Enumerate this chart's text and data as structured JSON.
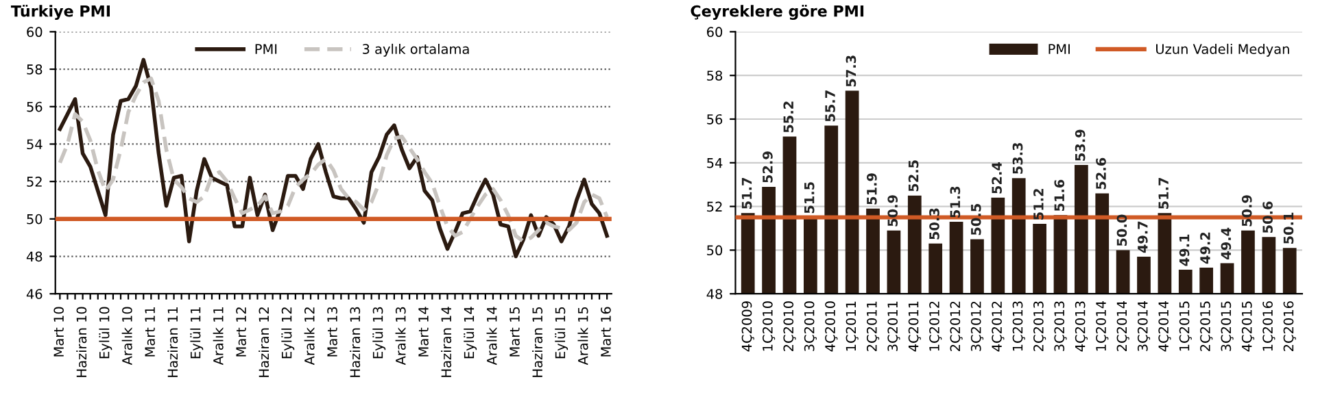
{
  "chart_data": [
    {
      "type": "line",
      "title": "Türkiye PMI",
      "categories": [
        "Mart 10",
        null,
        null,
        "Haziran 10",
        null,
        null,
        "Eylül 10",
        null,
        null,
        "Aralık 10",
        null,
        null,
        "Mart 11",
        null,
        null,
        "Haziran 11",
        null,
        null,
        "Eylül 11",
        null,
        null,
        "Aralık 11",
        null,
        null,
        "Mart 12",
        null,
        null,
        "Haziran 12",
        null,
        null,
        "Eylül 12",
        null,
        null,
        "Aralık 12",
        null,
        null,
        "Mart 13",
        null,
        null,
        "Haziran 13",
        null,
        null,
        "Eylül 13",
        null,
        null,
        "Aralık 13",
        null,
        null,
        "Mart 14",
        null,
        null,
        "Haziran 14",
        null,
        null,
        "Eylül 14",
        null,
        null,
        "Aralık 14",
        null,
        null,
        "Mart 15",
        null,
        null,
        "Haziran 15",
        null,
        null,
        "Eylül 15",
        null,
        null,
        "Aralık 15",
        null,
        null,
        "Mart 16"
      ],
      "series": [
        {
          "name": "PMI",
          "color": "#2b1a10",
          "line_style": "solid",
          "values": [
            54.8,
            55.6,
            56.4,
            53.5,
            52.8,
            51.5,
            50.2,
            54.5,
            56.3,
            56.4,
            57.1,
            58.5,
            57.0,
            53.5,
            50.7,
            52.2,
            52.3,
            48.8,
            51.5,
            53.2,
            52.2,
            52.0,
            51.8,
            49.6,
            49.6,
            52.2,
            50.2,
            51.3,
            49.4,
            50.5,
            52.3,
            52.3,
            51.6,
            53.2,
            54.0,
            52.5,
            51.2,
            51.1,
            51.1,
            50.5,
            49.8,
            52.5,
            53.3,
            54.5,
            55.0,
            53.7,
            52.7,
            53.3,
            51.5,
            51.0,
            49.5,
            48.4,
            49.3,
            50.3,
            50.4,
            51.3,
            52.1,
            51.3,
            49.7,
            49.6,
            48.0,
            48.9,
            50.2,
            49.1,
            50.1,
            49.7,
            48.8,
            49.6,
            51.0,
            52.1,
            50.8,
            50.3,
            49.1
          ]
        },
        {
          "name": "3 aylık ortalama",
          "color": "#c8c4c0",
          "line_style": "dashed",
          "values": [
            53.0,
            54.0,
            55.6,
            55.2,
            54.2,
            52.6,
            51.5,
            52.1,
            53.7,
            55.7,
            56.6,
            57.3,
            57.5,
            56.3,
            53.7,
            52.1,
            51.7,
            51.1,
            50.9,
            51.2,
            52.3,
            52.5,
            52.0,
            51.1,
            50.3,
            50.5,
            50.7,
            51.2,
            50.3,
            50.4,
            50.7,
            51.7,
            52.1,
            52.4,
            52.9,
            53.2,
            52.6,
            51.6,
            51.1,
            50.9,
            50.5,
            50.9,
            51.9,
            53.4,
            54.3,
            54.4,
            53.8,
            53.2,
            52.5,
            51.9,
            50.7,
            49.6,
            49.1,
            49.3,
            50.0,
            50.7,
            51.3,
            51.6,
            51.0,
            50.2,
            49.1,
            48.8,
            49.0,
            49.4,
            49.8,
            49.6,
            49.5,
            49.4,
            49.8,
            50.9,
            51.3,
            51.1,
            50.1
          ]
        }
      ],
      "ref_lines": [
        {
          "axis": "y",
          "value": 50,
          "color": "#d05a25"
        }
      ],
      "ylim": [
        46,
        60
      ],
      "yticks": [
        46,
        48,
        50,
        52,
        54,
        56,
        58,
        60
      ],
      "grid": "y",
      "legend": "top"
    },
    {
      "type": "bar",
      "title": "Çeyreklere göre PMI",
      "categories": [
        "4Ç2009",
        "1Ç2010",
        "2Ç2010",
        "3Ç2010",
        "4Ç2010",
        "1Ç2011",
        "2Ç2011",
        "3Ç2011",
        "4Ç2011",
        "1Ç2012",
        "2Ç2012",
        "3Ç2012",
        "4Ç2012",
        "1Ç2013",
        "2Ç2013",
        "3Ç2013",
        "4Ç2013",
        "1Ç2014",
        "2Ç2014",
        "3Ç2014",
        "4Ç2014",
        "1Ç2015",
        "2Ç2015",
        "3Ç2015",
        "4Ç2015",
        "1Ç2016",
        "2Ç2016"
      ],
      "series": [
        {
          "name": "PMI",
          "color": "#2b1a10",
          "values": [
            51.7,
            52.9,
            55.2,
            51.5,
            55.7,
            57.3,
            51.9,
            50.9,
            52.5,
            50.3,
            51.3,
            50.5,
            52.4,
            53.3,
            51.2,
            51.6,
            53.9,
            52.6,
            50.0,
            49.7,
            51.7,
            49.1,
            49.2,
            49.4,
            50.9,
            50.6,
            50.1
          ],
          "value_labels": [
            "51.7",
            "52.9",
            "55.2",
            "51.5",
            "55.7",
            "57.3",
            "51.9",
            "50.9",
            "52.5",
            "50.3",
            "51.3",
            "50.5",
            "52.4",
            "53.3",
            "51.2",
            "51.6",
            "53.9",
            "52.6",
            "50.0",
            "49.7",
            "51.7",
            "49.1",
            "49.2",
            "49.4",
            "50.9",
            "50.6",
            "50.1"
          ]
        }
      ],
      "ref_lines": [
        {
          "axis": "y",
          "value": 51.5,
          "label": "Uzun Vadeli Medyan",
          "color": "#d05a25"
        }
      ],
      "ylim": [
        48,
        60
      ],
      "yticks": [
        48,
        50,
        52,
        54,
        56,
        58,
        60
      ],
      "grid": "y",
      "legend": "top right"
    }
  ]
}
